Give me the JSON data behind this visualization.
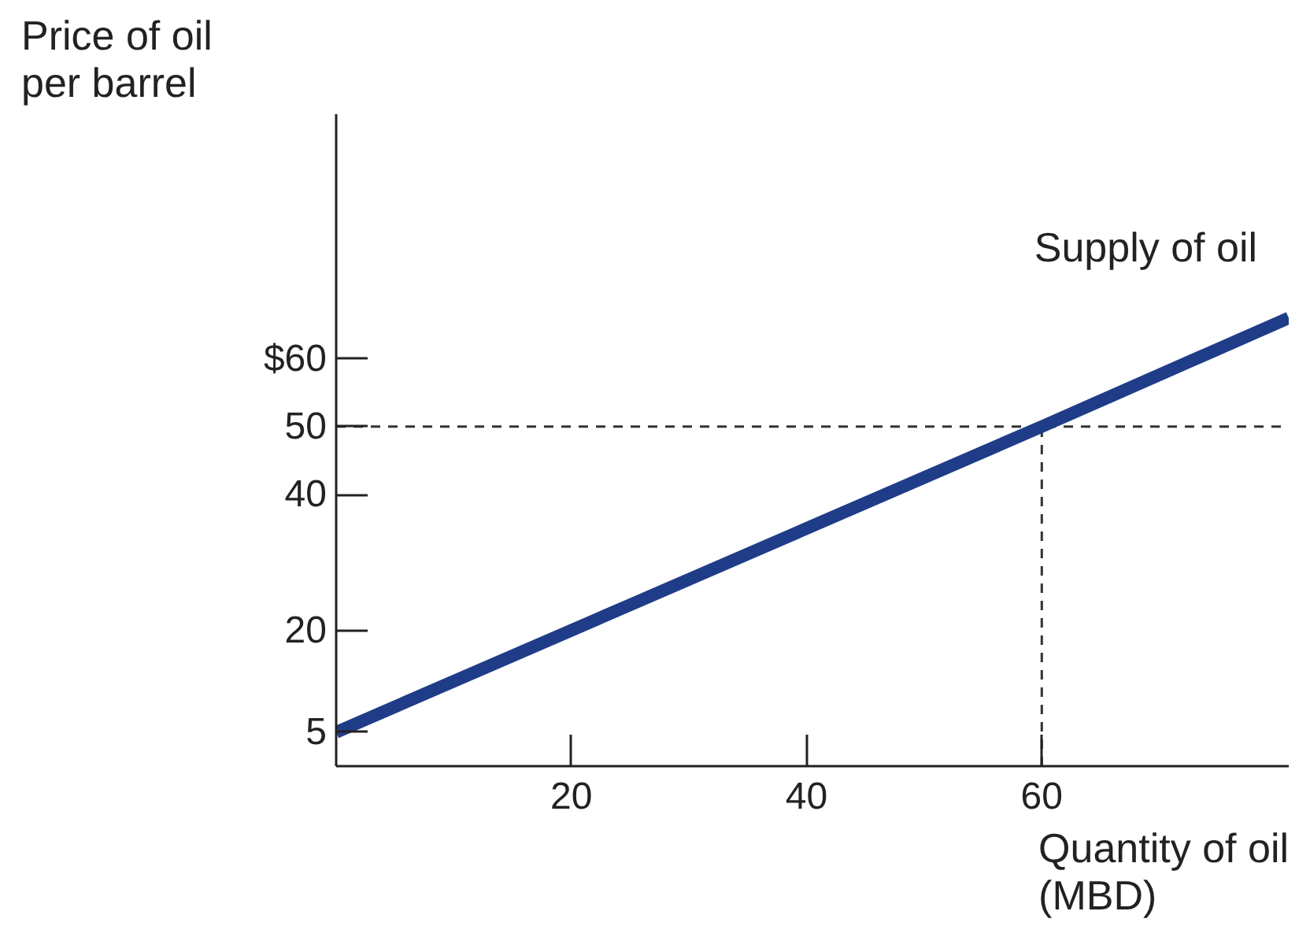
{
  "chart_data": {
    "type": "line",
    "xlabel": "Quantity of oil\n(MBD)",
    "ylabel": "Price of oil\nper barrel",
    "x": [
      0,
      60,
      81
    ],
    "series": [
      {
        "name": "Supply of oil",
        "color": "#1f3c88",
        "values": [
          5,
          50,
          66
        ]
      }
    ],
    "xlim": [
      0,
      81
    ],
    "ylim": [
      0,
      96
    ],
    "xticks": [
      20,
      40,
      60
    ],
    "yticks": [
      5,
      20,
      40,
      50,
      {
        "value": 60,
        "label": "$60"
      }
    ],
    "ref_lines": [
      {
        "axis": "y",
        "value": 50,
        "line_style": "dashed"
      },
      {
        "axis": "x",
        "value": 60,
        "line_style": "dashed"
      }
    ],
    "grid": false,
    "legend": false,
    "marker": "none",
    "line_style": "solid"
  }
}
